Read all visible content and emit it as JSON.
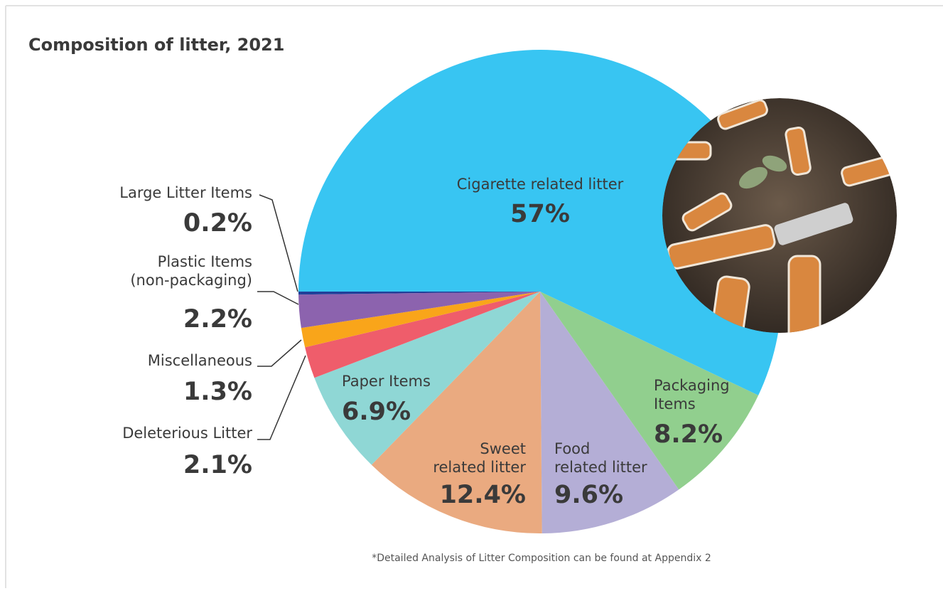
{
  "chart_data": {
    "type": "pie",
    "title": "Composition of litter, 2021",
    "categories": [
      "Cigarette related litter",
      "Packaging\nItems",
      "Food\nrelated litter",
      "Sweet\nrelated litter",
      "Paper Items",
      "Deleterious Litter",
      "Miscellaneous",
      "Plastic Items\n(non-packaging)",
      "Large Litter Items"
    ],
    "values": [
      57,
      8.2,
      9.6,
      12.4,
      6.9,
      2.1,
      1.3,
      2.2,
      0.2
    ],
    "value_labels": [
      "57%",
      "8.2%",
      "9.6%",
      "12.4%",
      "6.9%",
      "2.1%",
      "1.3%",
      "2.2%",
      "0.2%"
    ],
    "colors": [
      "#38c5f2",
      "#91cf8e",
      "#b4aed6",
      "#eaaa80",
      "#8fd7d5",
      "#ef5d6b",
      "#f9a51a",
      "#8c63ae",
      "#1f3f99"
    ],
    "note": "*Detailed Analysis of Litter Composition can be found at Appendix 2"
  }
}
